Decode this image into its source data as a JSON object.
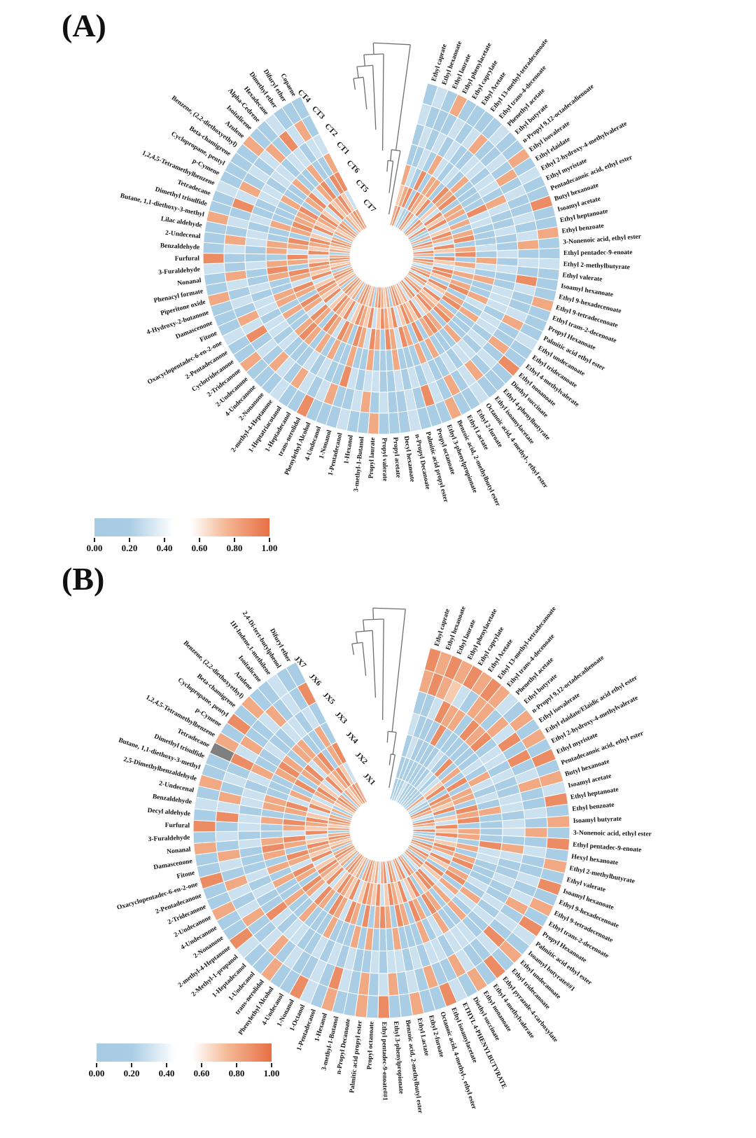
{
  "figure": {
    "background": "#ffffff"
  },
  "chart_data": {
    "type": "heatmap",
    "subtype": "circular-clustered-heatmap",
    "legend_position": "bottom-left",
    "values_encoding": "Each compound has a 7-character string, outermost ring first; digit d means value d/10 (estimated from cell color), '-' means missing value (gray cell).",
    "colors": {
      "scale_anchors": [
        [
          0.0,
          "#a6cbe2"
        ],
        [
          0.2,
          "#a9cde4"
        ],
        [
          0.45,
          "#ffffff"
        ],
        [
          0.55,
          "#ffffff"
        ],
        [
          0.75,
          "#f4b894"
        ],
        [
          1.0,
          "#e76f45"
        ]
      ],
      "na": "#7f7f7f",
      "cell_border": "#ffffff",
      "dendrogram": "#6e6e6e",
      "label_text": "#111111"
    },
    "colorbar": {
      "min": 0,
      "max": 1,
      "ticks": [
        "0.00",
        "0.20",
        "0.40",
        "0.60",
        "0.80",
        "1.00"
      ]
    },
    "panels": [
      {
        "id": "A",
        "label": "(A)",
        "rings_outer_to_inner": [
          "CT4",
          "CT3",
          "CT2",
          "CT1",
          "CT6",
          "CT5",
          "CT7"
        ],
        "dendrogram_tree": [
          [
            [
              [
                0,
                1
              ],
              2
            ],
            3
          ],
          [
            [
              4,
              5
            ],
            6
          ]
        ],
        "compounds_clockwise": [
          "Ethyl caprate",
          "Ethyl hexanoate",
          "Ethyl laurate",
          "Ethyl phenylacetate",
          "Ethyl caprylate",
          "Ethyl Acetate",
          "Ethyl 13-methyl-tetradecanoate",
          "Ethyl trans-4-decenoate",
          "Phenethyl acetate",
          "Ethyl butyrate",
          "n-Propyl 9,12-octadecadienoate",
          "Ethyl isovalerate",
          "Ethyl elaidate",
          "Ethyl 2-hydroxy-4-methylvalerate",
          "Ethyl myristate",
          "Pentadecanoic acid, ethyl ester",
          "Butyl hexanoate",
          "Isoamyl acetate",
          "Ethyl heptanoate",
          "Ethyl benzoate",
          "3-Nonenoic acid, ethyl ester",
          "Ethyl pentadec-9-enoate",
          "Ethyl 2-methylbutyrate",
          "Ethyl valerate",
          "Isoamyl hexanoate",
          "Ethyl 9-hexadecenoate",
          "Ethyl 9-tetradecenoate",
          "Ethyl trans-2-decenoate",
          "Propyl Hexanoate",
          "Palmitic acid ethyl ester",
          "Ethyl undecanoate",
          "Ethyl tridecanoate",
          "Ethyl 4-methylvalerate",
          "Ethyl nonanoate",
          "Diethyl succinate",
          "Ethyl 4-phenylbutyrate",
          "Ethyl isoamylacetate",
          "Octanoic acid, 4-methyl-, ethyl ester",
          "Ethyl 2-furoate",
          "Ethyl Lactate",
          "Benzoic acid, 2-methylbutyl ester",
          "Ethyl 3-phenylpropionate",
          "Propyl octanoate",
          "Palmitic acid propyl ester",
          "n-Propyl Decanoate",
          "Decyl hexanoate",
          "Propyl acetate",
          "Propyl valerate",
          "Propyl laurate",
          "3-methyl-1-Butanol",
          "1-Hexanol",
          "1-Pentadecanol",
          "1-Nonanol",
          "4-Undecanol",
          "Phenylethyl Alcohol",
          "trans-nerolidol",
          "1-Heptadecanol",
          "1-Heptatriacotanol",
          "2-methyl-4-Heptanone",
          "2-Nonanone",
          "4-Undecanone",
          "2-Undecanone",
          "2-Tridecanone",
          "Cyclotridecanone",
          "2-Pentadecanone",
          "Oxacyclopentadec-6-en-2-one",
          "Fitone",
          "Damascenone",
          "4-Hydroxy-2-butanone",
          "Piperitone oxide",
          "Phenacyl formate",
          "Nonanal",
          "3-Furaldehyde",
          "Furfural",
          "Benzaldehyde",
          "2-Undecenal",
          "Lilac aldehyde",
          "Butane, 1,1-diethoxy-3-methyl",
          "Dimethyl trisulfide",
          "Tetradecane",
          "1,2,4,5-Tetramethylbenzene",
          "p-Cymene",
          "Cyclopropane, pentyl",
          "Beta-chamigrene",
          "Benzene, (2,2-diethoxyethyl)",
          "Azulene",
          "Isoitalicene",
          "Alpha-Cedrene",
          "Hexadecane",
          "Dimethyl ether",
          "Difuryl ether",
          "Copaene"
        ],
        "values": [
          "2321878",
          "3232389",
          "2123293",
          "8232921",
          "2318292",
          "2233889",
          "1322878",
          "2823293",
          "3231922",
          "2138879",
          "2322938",
          "8231293",
          "2832879",
          "3222891",
          "2389232",
          "2233878",
          "9223292",
          "2322889",
          "1232938",
          "8322293",
          "2823879",
          "2232918",
          "3328292",
          "2233879",
          "2922338",
          "2328893",
          "8232292",
          "2132878",
          "2338929",
          "2823293",
          "3232879",
          "2238938",
          "2822293",
          "9232878",
          "2322989",
          "2238293",
          "2832879",
          "3322938",
          "2232893",
          "2828278",
          "8222987",
          "2338298",
          "2922879",
          "2232938",
          "3322392",
          "2238878",
          "2122987",
          "2322298",
          "8232879",
          "2838938",
          "2322392",
          "3232878",
          "2298987",
          "2822298",
          "2322879",
          "9238938",
          "2322392",
          "2838878",
          "3222987",
          "2328298",
          "2829879",
          "2238938",
          "8322392",
          "2232878",
          "2938987",
          "3322298",
          "2838879",
          "2238938",
          "2322392",
          "8232878",
          "2328987",
          "2829298",
          "3238879",
          "9222938",
          "2328392",
          "2838878",
          "2232987",
          "8322298",
          "2238879",
          "2922938",
          "3322892",
          "2832878",
          "2238987",
          "2322298",
          "2231879",
          "8338938",
          "2822392",
          "2232878",
          "3938987",
          "2322298",
          "2832979",
          "2238938"
        ]
      },
      {
        "id": "B",
        "label": "(B)",
        "rings_outer_to_inner": [
          "JX7",
          "JX6",
          "JX5",
          "JX3",
          "JX4",
          "JX2",
          "JX1"
        ],
        "dendrogram_tree": [
          [
            [
              [
                0,
                1
              ],
              2
            ],
            3
          ],
          [
            4,
            [
              5,
              6
            ]
          ]
        ],
        "compounds_clockwise": [
          "Ethyl caprate",
          "Ethyl hexanoate",
          "Ethyl laurate",
          "Ethyl phenylacetate",
          "Ethyl caprylate",
          "Ethyl Acetate",
          "Ethyl 13-methyl-tetradecanoate",
          "Ethyl trans-4-decenoate",
          "Phenethyl acetate",
          "Ethyl butyrate",
          "n-Propyl 9,12-octadecadienoate",
          "Ethyl isovalerate",
          "Ethyl elaidate/Elaidic acid ethyl ester",
          "Ethyl 2-hydroxy-4-methylvalerate",
          "Ethyl myristate",
          "Pentadecanoic acid, ethyl ester",
          "Butyl hexanoate",
          "Isoamyl acetate",
          "Ethyl heptanoate",
          "Ethyl benzoate",
          "Isoamyl butyrate",
          "3-Nonenoic acid, ethyl ester",
          "Ethyl pentadec-9-enoate",
          "Hexyl hexanoate",
          "Ethyl 2-methylbutyrate",
          "Ethyl valerate",
          "Isoamyl hexanoate",
          "Ethyl 9-hexadecenoate",
          "Ethyl 9-tetradecenoate",
          "Ethyl trans-2-decenoate",
          "Propyl Hexanoate",
          "Palmitic acid ethyl ester",
          "Isoamyl butyrate##1",
          "Ethyl undecanoate",
          "Ethyl tridecanoate",
          "Ethyl pyrazole-4-carboxylate",
          "Ethyl 4-methylvalerate",
          "Ethyl nonanoate",
          "Diethyl succinate",
          "ETHYL 4-PHENYLBUTYRATE",
          "Ethyl isoamylacetate",
          "Octanoic acid, 4-methyl-, ethyl ester",
          "Ethyl 2-furoate",
          "Ethyl Lactate",
          "Benzoic acid, 2-methylbutyl ester",
          "Ethyl 3-phenylpropionate",
          "Ethyl pentadec-9-enoate##1",
          "Propyl octanoate",
          "Palmitic acid propyl ester",
          "n-Propyl Decanoate",
          "3-methyl-1-Butanol",
          "1-Hexanol",
          "1-Pentadecanol",
          "1-Octanol",
          "1-Nonanol",
          "4-Undecanol",
          "Phenylethyl Alcohol",
          "trans-nerolidol",
          "1-Undecanol",
          "1-Heptadecanol",
          "2-Methyl-1-propanol",
          "2-methyl-4-Heptanone",
          "2-Nonanone",
          "4-Undecanone",
          "2-Undecanone",
          "2-Tridecanone",
          "2-Pentadecanone",
          "Oxacyclopentadec-6-en-2-one",
          "Fitone",
          "Damascenone",
          "Nonanal",
          "3-Furaldehyde",
          "Furfural",
          "Decyl aldehyde",
          "Benzaldehyde",
          "2-Undecenal",
          "2,5-Dimethylbenzaldehyde",
          "Butane, 1,1-diethoxy-3-methyl",
          "Dimethyl trisulfide",
          "Tetradecane",
          "1,2,4,5-Tetramethylbenzene",
          "p-Cymene",
          "Cyclopropane, pentyl",
          "Beta-chamigrene",
          "Benzene, (2,2-diethoxyethyl)",
          "Azulene",
          "Isoitalicene",
          "1H-Indene,1-methilene",
          "2,4-Di-tert-butylphenol",
          "Difuryl ether"
        ],
        "values": [
          "9823212",
          "8922322",
          "9832122",
          "8791223",
          "9389122",
          "8282122",
          "9822321",
          "8892232",
          "3282921",
          "2891232",
          "8322878",
          "2933293",
          "8232921",
          "2918292",
          "9233889",
          "2322878",
          "8823293",
          "3231922",
          "9138879",
          "2322938",
          "8231293",
          "2832879",
          "9222891",
          "2389232",
          "8233878",
          "2223292",
          "9322889",
          "1232938",
          "8322293",
          "2823879",
          "9232918",
          "3328292",
          "2233879",
          "8922338",
          "2328893",
          "9232292",
          "2132878",
          "8338929",
          "2823293",
          "3232879",
          "9238938",
          "2822293",
          "2232878",
          "8322989",
          "2238293",
          "2832879",
          "9322938",
          "2232893",
          "8828278",
          "2222987",
          "2338298",
          "8922879",
          "2232938",
          "3322392",
          "9238878",
          "2122987",
          "2322298",
          "8232879",
          "2838938",
          "2322392",
          "3232878",
          "9298987",
          "2822298",
          "2322879",
          "8238938",
          "2322392",
          "2838878",
          "9222987",
          "2328298",
          "2829879",
          "8238938",
          "2322392",
          "9232878",
          "2938987",
          "3322298",
          "2838879",
          "8238938",
          "2322392",
          "2232878",
          "-982232",
          "8328987",
          "2829298",
          "9238879",
          "2222938",
          "8328392",
          "2838878",
          "2232987",
          "3322298",
          "2238879",
          "2922938"
        ]
      }
    ]
  }
}
